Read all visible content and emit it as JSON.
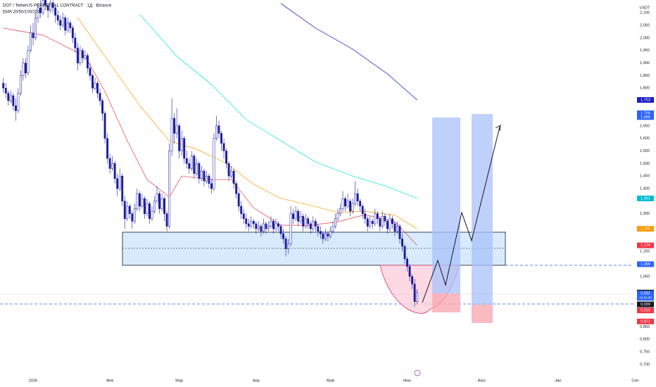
{
  "chart_data": {
    "type": "candlestick",
    "title": "DOT / TetherUS PERPETUAL CONTRACT · 1Д · Binance",
    "indicator_label": "EMA 20/50/100/200",
    "y_unit": "USDT",
    "up_color": "#ffffff",
    "down_color": "#1c1c9c",
    "outline_color": "#1c1c9c",
    "grid": false,
    "xlim": [
      -13.35,
      251.4
    ],
    "ylim": [
      0.666,
      2.151
    ],
    "xticks": [
      {
        "value": 0,
        "label": "2026"
      },
      {
        "value": 31,
        "label": "Фев"
      },
      {
        "value": 59,
        "label": "Мар"
      },
      {
        "value": 90,
        "label": "Апр"
      },
      {
        "value": 120,
        "label": "Май"
      },
      {
        "value": 151,
        "label": "Июн"
      },
      {
        "value": 181,
        "label": "Июл"
      },
      {
        "value": 212,
        "label": "Авг"
      },
      {
        "value": 243,
        "label": "Сен"
      }
    ],
    "yticks": [
      {
        "value": 2.1,
        "label": "2,100"
      },
      {
        "value": 2.05,
        "label": "2,050"
      },
      {
        "value": 2.0,
        "label": "2,000"
      },
      {
        "value": 1.95,
        "label": "1,950"
      },
      {
        "value": 1.9,
        "label": "1,900"
      },
      {
        "value": 1.85,
        "label": "1,850"
      },
      {
        "value": 1.8,
        "label": "1,800"
      },
      {
        "value": 1.65,
        "label": "1,650"
      },
      {
        "value": 1.6,
        "label": "1,600"
      },
      {
        "value": 1.55,
        "label": "1,550"
      },
      {
        "value": 1.5,
        "label": "1,500"
      },
      {
        "value": 1.45,
        "label": "1,450"
      },
      {
        "value": 1.4,
        "label": "1,400"
      },
      {
        "value": 1.3,
        "label": "1,300"
      },
      {
        "value": 1.15,
        "label": "1,150"
      },
      {
        "value": 1.05,
        "label": "1,050"
      },
      {
        "value": 0.85,
        "label": "0,850"
      },
      {
        "value": 0.8,
        "label": "0,800"
      },
      {
        "value": 0.75,
        "label": "0,750"
      },
      {
        "value": 0.7,
        "label": "0,700"
      }
    ],
    "x": [
      -12,
      -11,
      -10,
      -9,
      -8,
      -7,
      -6,
      -5,
      -4,
      -3,
      -2,
      -1,
      0,
      1,
      2,
      3,
      4,
      5,
      6,
      7,
      8,
      9,
      10,
      11,
      12,
      13,
      14,
      15,
      16,
      17,
      18,
      19,
      20,
      21,
      22,
      23,
      24,
      25,
      26,
      27,
      28,
      29,
      30,
      31,
      32,
      33,
      34,
      35,
      36,
      37,
      38,
      39,
      40,
      41,
      42,
      43,
      44,
      45,
      46,
      47,
      48,
      49,
      50,
      51,
      52,
      53,
      54,
      55,
      56,
      57,
      58,
      59,
      60,
      61,
      62,
      63,
      64,
      65,
      66,
      67,
      68,
      69,
      70,
      71,
      72,
      73,
      74,
      75,
      76,
      77,
      78,
      79,
      80,
      81,
      82,
      83,
      84,
      85,
      86,
      87,
      88,
      89,
      90,
      91,
      92,
      93,
      94,
      95,
      96,
      97,
      98,
      99,
      100,
      101,
      102,
      103,
      104,
      105,
      106,
      107,
      108,
      109,
      110,
      111,
      112,
      113,
      114,
      115,
      116,
      117,
      118,
      119,
      120,
      121,
      122,
      123,
      124,
      125,
      126,
      127,
      128,
      129,
      130,
      131,
      132,
      133,
      134,
      135,
      136,
      137,
      138,
      139,
      140,
      141,
      142,
      143,
      144,
      145,
      146,
      147,
      148,
      149,
      150,
      151,
      152,
      153,
      154,
      155
    ],
    "ohlc": [
      [
        1.82,
        1.84,
        1.78,
        1.8
      ],
      [
        1.8,
        1.82,
        1.76,
        1.78
      ],
      [
        1.78,
        1.79,
        1.73,
        1.75
      ],
      [
        1.75,
        1.79,
        1.74,
        1.77
      ],
      [
        1.77,
        1.78,
        1.71,
        1.73
      ],
      [
        1.73,
        1.76,
        1.67,
        1.71
      ],
      [
        1.71,
        1.8,
        1.7,
        1.78
      ],
      [
        1.78,
        1.87,
        1.77,
        1.85
      ],
      [
        1.85,
        1.92,
        1.83,
        1.9
      ],
      [
        1.9,
        1.92,
        1.84,
        1.86
      ],
      [
        1.86,
        1.97,
        1.85,
        1.95
      ],
      [
        1.95,
        2.05,
        1.94,
        2.02
      ],
      [
        2.02,
        2.06,
        1.97,
        2.0
      ],
      [
        2.0,
        2.1,
        1.99,
        2.08
      ],
      [
        2.08,
        2.14,
        2.06,
        2.12
      ],
      [
        2.12,
        2.15,
        2.08,
        2.1
      ],
      [
        2.1,
        2.18,
        2.09,
        2.15
      ],
      [
        2.15,
        2.17,
        2.11,
        2.13
      ],
      [
        2.13,
        2.14,
        2.08,
        2.11
      ],
      [
        2.11,
        2.16,
        2.1,
        2.14
      ],
      [
        2.14,
        2.15,
        2.1,
        2.12
      ],
      [
        2.12,
        2.13,
        2.06,
        2.09
      ],
      [
        2.09,
        2.11,
        2.05,
        2.07
      ],
      [
        2.07,
        2.09,
        2.03,
        2.05
      ],
      [
        2.05,
        2.1,
        2.04,
        2.08
      ],
      [
        2.08,
        2.09,
        2.01,
        2.03
      ],
      [
        2.03,
        2.08,
        2.02,
        2.06
      ],
      [
        2.06,
        2.07,
        2.02,
        2.04
      ],
      [
        2.04,
        2.05,
        1.98,
        2.0
      ],
      [
        2.0,
        2.02,
        1.94,
        1.96
      ],
      [
        1.96,
        1.98,
        1.87,
        1.9
      ],
      [
        1.9,
        1.97,
        1.89,
        1.95
      ],
      [
        1.95,
        1.96,
        1.9,
        1.92
      ],
      [
        1.92,
        1.95,
        1.91,
        1.93
      ],
      [
        1.93,
        1.94,
        1.86,
        1.88
      ],
      [
        1.88,
        1.9,
        1.83,
        1.85
      ],
      [
        1.85,
        1.86,
        1.78,
        1.8
      ],
      [
        1.8,
        1.84,
        1.79,
        1.82
      ],
      [
        1.82,
        1.83,
        1.76,
        1.78
      ],
      [
        1.78,
        1.8,
        1.73,
        1.75
      ],
      [
        1.75,
        1.76,
        1.67,
        1.7
      ],
      [
        1.7,
        1.71,
        1.58,
        1.6
      ],
      [
        1.6,
        1.62,
        1.5,
        1.52
      ],
      [
        1.52,
        1.54,
        1.46,
        1.48
      ],
      [
        1.48,
        1.53,
        1.47,
        1.5
      ],
      [
        1.5,
        1.51,
        1.42,
        1.44
      ],
      [
        1.44,
        1.46,
        1.37,
        1.4
      ],
      [
        1.4,
        1.48,
        1.39,
        1.45
      ],
      [
        1.45,
        1.46,
        1.33,
        1.35
      ],
      [
        1.35,
        1.37,
        1.24,
        1.28
      ],
      [
        1.28,
        1.35,
        1.27,
        1.33
      ],
      [
        1.33,
        1.34,
        1.28,
        1.3
      ],
      [
        1.3,
        1.31,
        1.24,
        1.27
      ],
      [
        1.27,
        1.34,
        1.26,
        1.32
      ],
      [
        1.32,
        1.4,
        1.31,
        1.38
      ],
      [
        1.38,
        1.39,
        1.31,
        1.33
      ],
      [
        1.33,
        1.38,
        1.32,
        1.36
      ],
      [
        1.36,
        1.37,
        1.28,
        1.3
      ],
      [
        1.3,
        1.36,
        1.29,
        1.34
      ],
      [
        1.34,
        1.35,
        1.26,
        1.28
      ],
      [
        1.28,
        1.33,
        1.27,
        1.31
      ],
      [
        1.31,
        1.37,
        1.3,
        1.35
      ],
      [
        1.35,
        1.41,
        1.34,
        1.38
      ],
      [
        1.38,
        1.39,
        1.3,
        1.32
      ],
      [
        1.32,
        1.38,
        1.31,
        1.36
      ],
      [
        1.36,
        1.37,
        1.27,
        1.3
      ],
      [
        1.3,
        1.31,
        1.23,
        1.25
      ],
      [
        1.25,
        1.58,
        1.24,
        1.55
      ],
      [
        1.55,
        1.76,
        1.53,
        1.68
      ],
      [
        1.68,
        1.7,
        1.58,
        1.62
      ],
      [
        1.62,
        1.72,
        1.6,
        1.65
      ],
      [
        1.65,
        1.66,
        1.52,
        1.55
      ],
      [
        1.55,
        1.63,
        1.53,
        1.6
      ],
      [
        1.6,
        1.61,
        1.5,
        1.52
      ],
      [
        1.52,
        1.55,
        1.48,
        1.5
      ],
      [
        1.5,
        1.52,
        1.46,
        1.48
      ],
      [
        1.48,
        1.55,
        1.47,
        1.53
      ],
      [
        1.53,
        1.54,
        1.44,
        1.46
      ],
      [
        1.46,
        1.52,
        1.45,
        1.5
      ],
      [
        1.5,
        1.51,
        1.42,
        1.44
      ],
      [
        1.44,
        1.49,
        1.43,
        1.47
      ],
      [
        1.47,
        1.48,
        1.41,
        1.43
      ],
      [
        1.43,
        1.47,
        1.42,
        1.45
      ],
      [
        1.45,
        1.46,
        1.4,
        1.42
      ],
      [
        1.42,
        1.44,
        1.38,
        1.4
      ],
      [
        1.4,
        1.62,
        1.39,
        1.6
      ],
      [
        1.6,
        1.69,
        1.59,
        1.65
      ],
      [
        1.65,
        1.67,
        1.6,
        1.62
      ],
      [
        1.62,
        1.63,
        1.55,
        1.58
      ],
      [
        1.58,
        1.6,
        1.52,
        1.55
      ],
      [
        1.55,
        1.56,
        1.48,
        1.5
      ],
      [
        1.5,
        1.51,
        1.43,
        1.45
      ],
      [
        1.45,
        1.49,
        1.44,
        1.47
      ],
      [
        1.47,
        1.48,
        1.4,
        1.42
      ],
      [
        1.42,
        1.43,
        1.36,
        1.38
      ],
      [
        1.38,
        1.39,
        1.31,
        1.33
      ],
      [
        1.33,
        1.35,
        1.28,
        1.3
      ],
      [
        1.3,
        1.32,
        1.26,
        1.28
      ],
      [
        1.28,
        1.3,
        1.24,
        1.26
      ],
      [
        1.26,
        1.28,
        1.23,
        1.25
      ],
      [
        1.25,
        1.29,
        1.24,
        1.27
      ],
      [
        1.27,
        1.28,
        1.24,
        1.26
      ],
      [
        1.26,
        1.27,
        1.22,
        1.24
      ],
      [
        1.24,
        1.27,
        1.23,
        1.25
      ],
      [
        1.25,
        1.26,
        1.21,
        1.23
      ],
      [
        1.23,
        1.28,
        1.22,
        1.26
      ],
      [
        1.26,
        1.27,
        1.22,
        1.24
      ],
      [
        1.24,
        1.27,
        1.23,
        1.25
      ],
      [
        1.25,
        1.29,
        1.24,
        1.27
      ],
      [
        1.27,
        1.28,
        1.22,
        1.24
      ],
      [
        1.24,
        1.28,
        1.23,
        1.26
      ],
      [
        1.26,
        1.27,
        1.23,
        1.25
      ],
      [
        1.25,
        1.26,
        1.2,
        1.22
      ],
      [
        1.22,
        1.24,
        1.18,
        1.2
      ],
      [
        1.2,
        1.21,
        1.13,
        1.16
      ],
      [
        1.16,
        1.2,
        1.14,
        1.18
      ],
      [
        1.18,
        1.33,
        1.17,
        1.3
      ],
      [
        1.3,
        1.32,
        1.26,
        1.28
      ],
      [
        1.28,
        1.33,
        1.27,
        1.31
      ],
      [
        1.31,
        1.32,
        1.25,
        1.27
      ],
      [
        1.27,
        1.31,
        1.26,
        1.29
      ],
      [
        1.29,
        1.3,
        1.23,
        1.25
      ],
      [
        1.25,
        1.3,
        1.24,
        1.28
      ],
      [
        1.28,
        1.29,
        1.24,
        1.26
      ],
      [
        1.26,
        1.27,
        1.22,
        1.24
      ],
      [
        1.24,
        1.29,
        1.23,
        1.27
      ],
      [
        1.27,
        1.28,
        1.23,
        1.25
      ],
      [
        1.25,
        1.26,
        1.21,
        1.23
      ],
      [
        1.23,
        1.25,
        1.2,
        1.22
      ],
      [
        1.22,
        1.23,
        1.18,
        1.2
      ],
      [
        1.2,
        1.24,
        1.19,
        1.22
      ],
      [
        1.22,
        1.23,
        1.19,
        1.21
      ],
      [
        1.21,
        1.25,
        1.2,
        1.23
      ],
      [
        1.23,
        1.27,
        1.22,
        1.25
      ],
      [
        1.25,
        1.3,
        1.24,
        1.28
      ],
      [
        1.28,
        1.32,
        1.27,
        1.3
      ],
      [
        1.3,
        1.34,
        1.29,
        1.32
      ],
      [
        1.32,
        1.39,
        1.31,
        1.36
      ],
      [
        1.36,
        1.37,
        1.31,
        1.33
      ],
      [
        1.33,
        1.38,
        1.32,
        1.35
      ],
      [
        1.35,
        1.36,
        1.29,
        1.31
      ],
      [
        1.31,
        1.36,
        1.3,
        1.34
      ],
      [
        1.34,
        1.43,
        1.33,
        1.38
      ],
      [
        1.38,
        1.4,
        1.33,
        1.35
      ],
      [
        1.35,
        1.36,
        1.31,
        1.33
      ],
      [
        1.33,
        1.34,
        1.28,
        1.3
      ],
      [
        1.3,
        1.32,
        1.26,
        1.28
      ],
      [
        1.28,
        1.29,
        1.23,
        1.25
      ],
      [
        1.25,
        1.29,
        1.24,
        1.27
      ],
      [
        1.27,
        1.28,
        1.24,
        1.26
      ],
      [
        1.26,
        1.32,
        1.25,
        1.3
      ],
      [
        1.3,
        1.31,
        1.26,
        1.28
      ],
      [
        1.28,
        1.29,
        1.23,
        1.25
      ],
      [
        1.25,
        1.31,
        1.24,
        1.29
      ],
      [
        1.29,
        1.3,
        1.25,
        1.27
      ],
      [
        1.27,
        1.28,
        1.22,
        1.24
      ],
      [
        1.24,
        1.3,
        1.23,
        1.28
      ],
      [
        1.28,
        1.29,
        1.24,
        1.26
      ],
      [
        1.26,
        1.27,
        1.21,
        1.23
      ],
      [
        1.23,
        1.27,
        1.22,
        1.25
      ],
      [
        1.25,
        1.26,
        1.18,
        1.2
      ],
      [
        1.2,
        1.22,
        1.15,
        1.17
      ],
      [
        1.17,
        1.18,
        1.1,
        1.12
      ],
      [
        1.12,
        1.13,
        1.07,
        1.09
      ],
      [
        1.09,
        1.1,
        1.03,
        1.05
      ],
      [
        1.05,
        1.06,
        1.0,
        1.02
      ],
      [
        1.02,
        1.04,
        0.93,
        0.95
      ],
      [
        0.95,
        1.0,
        0.939,
        0.986
      ]
    ],
    "ema": [
      {
        "color": "#f23645",
        "x": [
          -12,
          4,
          21,
          29,
          38,
          46,
          55,
          60,
          72,
          80,
          89,
          100,
          112,
          123,
          134,
          146,
          155
        ],
        "values": [
          2.039,
          2.011,
          1.927,
          1.787,
          1.591,
          1.436,
          1.366,
          1.45,
          1.436,
          1.436,
          1.324,
          1.254,
          1.254,
          1.268,
          1.296,
          1.268,
          1.174
        ]
      },
      {
        "color": "#ff9800",
        "x": [
          18,
          29,
          43,
          55,
          66,
          78,
          89,
          100,
          112,
          123,
          134,
          146,
          155
        ],
        "values": [
          2.081,
          1.927,
          1.731,
          1.59,
          1.557,
          1.501,
          1.417,
          1.361,
          1.333,
          1.305,
          1.31,
          1.294,
          1.24
        ]
      },
      {
        "color": "#00e5d4",
        "x": [
          43,
          58,
          72,
          86,
          100,
          114,
          129,
          143,
          155
        ],
        "values": [
          2.095,
          1.927,
          1.815,
          1.675,
          1.59,
          1.506,
          1.45,
          1.408,
          1.361
        ]
      },
      {
        "color": "#2a2ad8",
        "x": [
          100,
          114,
          129,
          143,
          155
        ],
        "values": [
          2.137,
          2.039,
          1.955,
          1.857,
          1.753
        ]
      }
    ],
    "price_tags": [
      {
        "value": 1.753,
        "label": "1,753",
        "color": "#1c1cc8"
      },
      {
        "value": 1.7,
        "label": "1,700",
        "color": "#2962ff"
      },
      {
        "value": 1.685,
        "label": "1,685",
        "color": "#2962ff"
      },
      {
        "value": 1.361,
        "label": "1,361",
        "color": "#00bcd4"
      },
      {
        "value": 1.24,
        "label": "1,240",
        "color": "#ff9800"
      },
      {
        "value": 1.174,
        "label": "1,174",
        "color": "#f23645"
      },
      {
        "value": 1.099,
        "label": "1,099",
        "color": "#2962ff"
      },
      {
        "value": 0.986,
        "label": "0,986",
        "color": "#131722"
      },
      {
        "value": 0.982,
        "label": "0,982",
        "color": "#2962ff",
        "sublabel": "15:24:36"
      },
      {
        "value": 0.939,
        "label": "0,939",
        "color": "#131722"
      },
      {
        "value": 0.915,
        "label": "0,915",
        "color": "#f23645"
      },
      {
        "value": 0.871,
        "label": "0,871",
        "color": "#f23645"
      }
    ]
  }
}
